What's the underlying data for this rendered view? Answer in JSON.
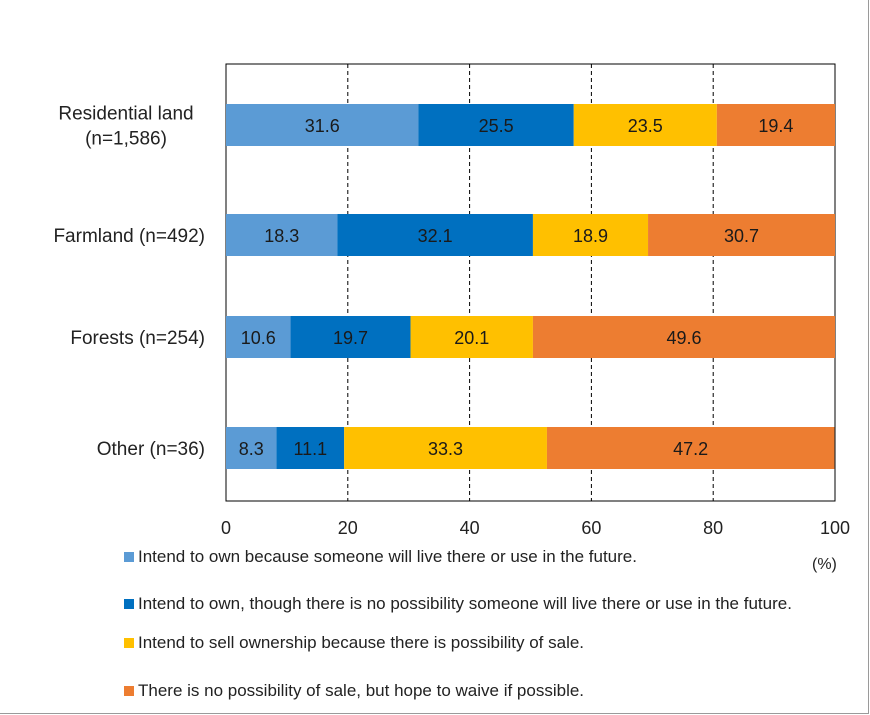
{
  "chart_data": {
    "type": "bar",
    "orientation": "horizontal",
    "stacked": true,
    "categories": [
      "Residential land\n(n=1,586)",
      "Farmland (n=492)",
      "Forests (n=254)",
      "Other (n=36)"
    ],
    "series": [
      {
        "name": "Intend to own because someone will live there or use in the future.",
        "color": "#5B9BD5",
        "values": [
          31.6,
          18.3,
          10.6,
          8.3
        ]
      },
      {
        "name": "Intend to own, though there is no possibility someone will live there or use in the future.",
        "color": "#0070C0",
        "values": [
          25.5,
          32.1,
          19.7,
          11.1
        ]
      },
      {
        "name": "Intend to sell ownership because there is possibility of sale.",
        "color": "#FFC000",
        "values": [
          23.5,
          18.9,
          20.1,
          33.3
        ]
      },
      {
        "name": "There is no possibility of sale, but hope to waive if possible.",
        "color": "#ED7D31",
        "values": [
          19.4,
          30.7,
          49.6,
          47.2
        ]
      }
    ],
    "xlim": [
      0,
      100
    ],
    "xticks": [
      0,
      20,
      40,
      60,
      80,
      100
    ],
    "x_unit": "(%)",
    "grid": "vertical dashed",
    "legend_position": "bottom"
  }
}
